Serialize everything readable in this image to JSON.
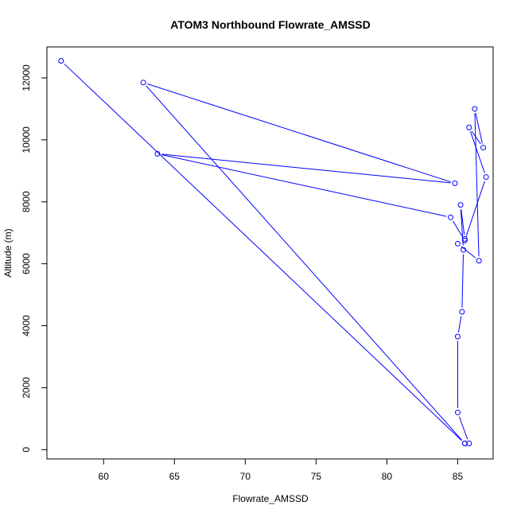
{
  "chart_data": {
    "type": "line",
    "title": "ATOM3 Northbound Flowrate_AMSSD",
    "xlabel": "Flowrate_AMSSD",
    "ylabel": "Altitude (m)",
    "xlim": [
      56.0,
      87.5
    ],
    "ylim": [
      -300,
      13000
    ],
    "xticks": [
      60,
      65,
      70,
      75,
      80,
      85
    ],
    "yticks": [
      0,
      2000,
      4000,
      6000,
      8000,
      10000,
      12000
    ],
    "grid": false,
    "legend": "none",
    "series": [
      {
        "color": "#0000ff",
        "marker": "open-circle",
        "points": [
          [
            85.5,
            200
          ],
          [
            85.8,
            200
          ],
          [
            85.0,
            1200
          ],
          [
            85.0,
            3650
          ],
          [
            85.3,
            4450
          ],
          [
            85.4,
            6450
          ],
          [
            85.2,
            7900
          ],
          [
            85.5,
            6800
          ],
          [
            85.0,
            6650
          ],
          [
            86.5,
            6100
          ],
          [
            86.2,
            11000
          ],
          [
            86.8,
            9750
          ],
          [
            85.8,
            10400
          ],
          [
            87.0,
            8800
          ],
          [
            85.5,
            6750
          ],
          [
            84.5,
            7500
          ],
          [
            63.8,
            9550
          ],
          [
            84.8,
            8600
          ],
          [
            62.8,
            11850
          ],
          [
            85.5,
            200
          ],
          [
            57.0,
            12550
          ]
        ]
      }
    ]
  }
}
